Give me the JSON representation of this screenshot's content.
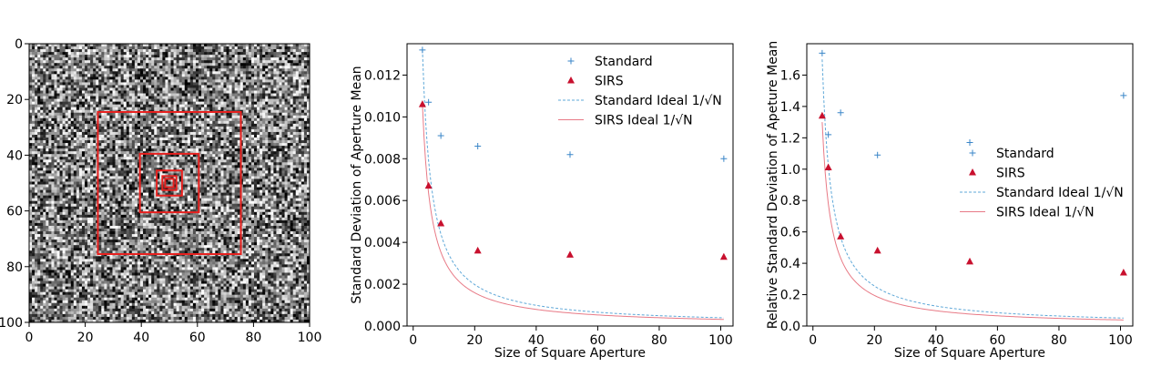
{
  "chart_data": [
    {
      "type": "heatmap",
      "x_ticks": [
        "0",
        "20",
        "40",
        "60",
        "80",
        "100"
      ],
      "y_ticks": [
        "0",
        "20",
        "40",
        "60",
        "80",
        "100"
      ],
      "xlim": [
        0,
        100
      ],
      "ylim": [
        100,
        0
      ],
      "colormap": "grayscale",
      "grid_size": 101,
      "squares": [
        {
          "size": 51,
          "center": [
            50,
            50
          ],
          "color": "#e8201e"
        },
        {
          "size": 21,
          "center": [
            50,
            50
          ],
          "color": "#e8201e"
        },
        {
          "size": 9,
          "center": [
            50,
            50
          ],
          "color": "#e8201e"
        },
        {
          "size": 5,
          "center": [
            50,
            50
          ],
          "color": "#e8201e"
        },
        {
          "size": 3,
          "center": [
            50,
            50
          ],
          "color": "#e8201e"
        }
      ]
    },
    {
      "type": "scatter",
      "xlabel": "Size of Square Aperture",
      "ylabel": "Standard Deviation of Aperture Mean",
      "xlim": [
        -2,
        104
      ],
      "ylim": [
        0,
        0.0135
      ],
      "x_ticks": [
        "0",
        "20",
        "40",
        "60",
        "80",
        "100"
      ],
      "y_ticks": [
        "0.000",
        "0.002",
        "0.004",
        "0.006",
        "0.008",
        "0.010",
        "0.012"
      ],
      "legend_position": "top-center",
      "series": [
        {
          "name": "Standard",
          "marker": "plus",
          "color": "#3a86c8",
          "x": [
            3,
            5,
            9,
            21,
            51,
            101
          ],
          "y": [
            0.0132,
            0.0107,
            0.0091,
            0.0086,
            0.0082,
            0.008
          ]
        },
        {
          "name": "SIRS",
          "marker": "triangle",
          "color": "#c8102e",
          "x": [
            3,
            5,
            9,
            21,
            51,
            101
          ],
          "y": [
            0.0106,
            0.0067,
            0.0049,
            0.0036,
            0.0034,
            0.0033
          ]
        },
        {
          "name": "Standard Ideal 1/√N",
          "line": "dashed",
          "color": "#5fa8d8",
          "k": 0.0396
        },
        {
          "name": "SIRS Ideal 1/√N",
          "line": "solid",
          "color": "#e87a86",
          "k": 0.0318
        }
      ]
    },
    {
      "type": "scatter",
      "xlabel": "Size of Square Aperture",
      "ylabel": "Relative Standard Deviation of Apeture Mean",
      "xlim": [
        -2,
        104
      ],
      "ylim": [
        0,
        1.8
      ],
      "x_ticks": [
        "0",
        "20",
        "40",
        "60",
        "80",
        "100"
      ],
      "y_ticks": [
        "0.0",
        "0.2",
        "0.4",
        "0.6",
        "0.8",
        "1.0",
        "1.2",
        "1.4",
        "1.6"
      ],
      "legend_position": "center-right",
      "series": [
        {
          "name": "Standard",
          "marker": "plus",
          "color": "#3a86c8",
          "x": [
            3,
            5,
            9,
            21,
            51,
            101
          ],
          "y": [
            1.74,
            1.22,
            1.36,
            1.09,
            1.17,
            1.47
          ]
        },
        {
          "name": "SIRS",
          "marker": "triangle",
          "color": "#c8102e",
          "x": [
            3,
            5,
            9,
            21,
            51,
            101
          ],
          "y": [
            1.34,
            1.01,
            0.57,
            0.48,
            0.41,
            0.34
          ]
        },
        {
          "name": "Standard Ideal 1/√N",
          "line": "dashed",
          "color": "#5fa8d8",
          "k": 5.1
        },
        {
          "name": "SIRS Ideal 1/√N",
          "line": "solid",
          "color": "#e87a86",
          "k": 3.9
        }
      ]
    }
  ]
}
